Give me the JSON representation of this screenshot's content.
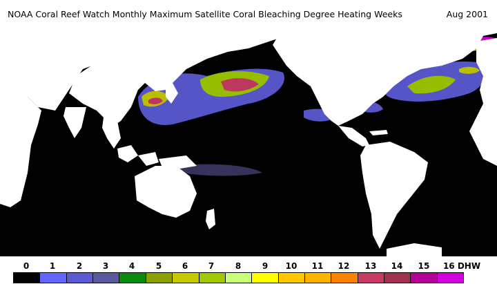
{
  "header": {
    "title": "NOAA Coral Reef Watch Monthly Maximum Satellite Coral Bleaching Degree Heating Weeks",
    "date": "Aug 2001"
  },
  "map": {
    "ocean_color": "#000000",
    "land_color": "#ffffff",
    "description_icon": "world-map-pacific-centered"
  },
  "legend": {
    "ticks": [
      "0",
      "1",
      "2",
      "3",
      "4",
      "5",
      "6",
      "7",
      "8",
      "9",
      "10",
      "11",
      "12",
      "13",
      "14",
      "15",
      "16 DHW"
    ],
    "colors": [
      "#000000",
      "#6464ff",
      "#5a5ad2",
      "#5a5aa0",
      "#0a8c0a",
      "#8ca000",
      "#c8c800",
      "#a0c800",
      "#c8ff78",
      "#ffff00",
      "#ffc800",
      "#ffb400",
      "#ff8200",
      "#c83c64",
      "#a03250",
      "#b40096",
      "#d200dc"
    ]
  }
}
